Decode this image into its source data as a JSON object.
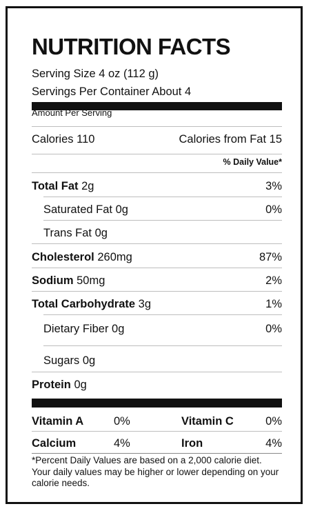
{
  "title": "NUTRITION FACTS",
  "serving_size": "Serving Size 4 oz (112 g)",
  "servings_per_container": "Servings Per Container About 4",
  "amount_per_serving": "Amount Per Serving",
  "calories": {
    "label": "Calories",
    "value": "110",
    "from_fat_label": "Calories from Fat",
    "from_fat_value": "15"
  },
  "daily_value_header": "% Daily Value*",
  "nutrients": [
    {
      "label": "Total Fat",
      "amount": "2g",
      "dv": "3%"
    },
    {
      "label": "Saturated Fat",
      "amount": "0g",
      "dv": "0%"
    },
    {
      "label": "Trans Fat",
      "amount": "0g",
      "dv": ""
    },
    {
      "label": "Cholesterol",
      "amount": "260mg",
      "dv": "87%"
    },
    {
      "label": "Sodium",
      "amount": "50mg",
      "dv": "2%"
    },
    {
      "label": "Total Carbohydrate",
      "amount": "3g",
      "dv": "1%"
    },
    {
      "label": "Dietary Fiber",
      "amount": "0g",
      "dv": "0%"
    },
    {
      "label": "Sugars",
      "amount": "0g",
      "dv": ""
    },
    {
      "label": "Protein",
      "amount": "0g",
      "dv": ""
    }
  ],
  "vitamins": [
    {
      "label": "Vitamin A",
      "dv": "0%"
    },
    {
      "label": "Vitamin C",
      "dv": "0%"
    },
    {
      "label": "Calcium",
      "dv": "4%"
    },
    {
      "label": "Iron",
      "dv": "4%"
    }
  ],
  "footnote": "*Percent Daily Values are based on a 2,000 calorie diet. Your daily values may be higher or lower depending on your calorie needs."
}
